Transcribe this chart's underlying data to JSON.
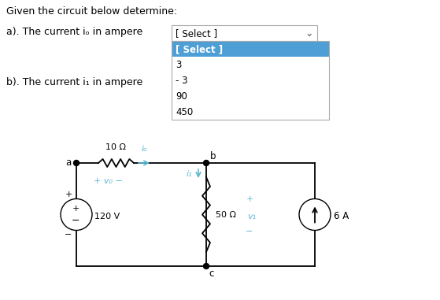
{
  "title": "Given the circuit below determine:",
  "question_a": "a). The current iₒ in ampere",
  "question_b": "b). The current i₁ in ampere",
  "dropdown_label": "[ Select ]",
  "dropdown_options": [
    "[ Select ]",
    "3",
    "- 3",
    "90",
    "450"
  ],
  "bg_color": "#ffffff",
  "text_color": "#000000",
  "dropdown_highlight_color": "#4d9fd6",
  "dropdown_border_color": "#aaaaaa",
  "circuit_color": "#000000",
  "cyan_color": "#5bb8d4",
  "resistor_color": "#000000",
  "node_a_label": "a",
  "node_b_label": "b",
  "node_c_label": "c",
  "resistor1_label": "10 Ω",
  "current_io_label": "iₒ",
  "resistor2_label": "50 Ω",
  "current_i1_label": "i₁",
  "voltage_source_label": "120 V",
  "current_source_label": "6 A",
  "vo_label": "+ v₀ −",
  "v1_label": "v₁",
  "plus_label": "+",
  "minus_label": "−",
  "figsize": [
    5.59,
    3.81
  ],
  "dpi": 100
}
